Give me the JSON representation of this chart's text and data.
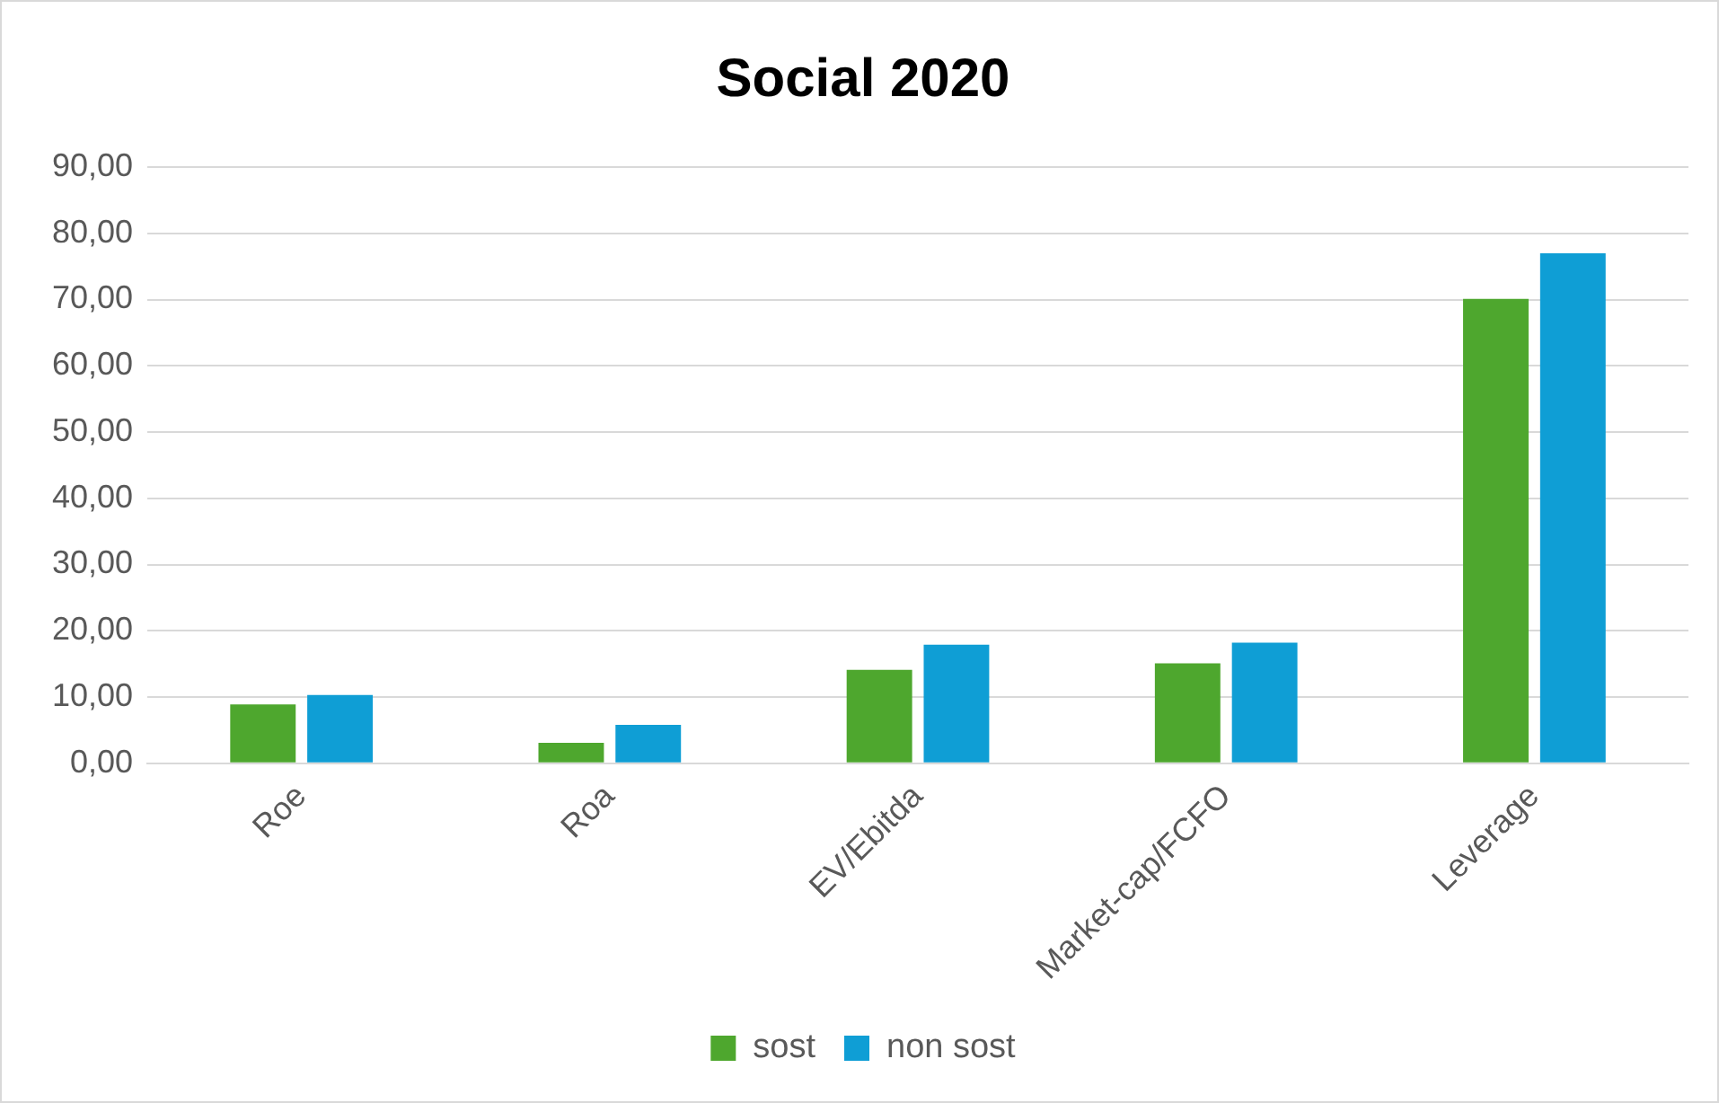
{
  "chart_data": {
    "type": "bar",
    "title": "Social 2020",
    "categories": [
      "Roe",
      "Roa",
      "EV/Ebitda",
      "Market-cap/FCFO",
      "Leverage"
    ],
    "series": [
      {
        "name": "sost",
        "color": "#4ea72e",
        "values": [
          8.9,
          3.1,
          14.1,
          15.1,
          70.1
        ]
      },
      {
        "name": "non sost",
        "color": "#0f9ed5",
        "values": [
          10.3,
          5.8,
          17.9,
          18.2,
          77.0
        ]
      }
    ],
    "ylim": [
      0,
      90
    ],
    "yticks": [
      {
        "value": 0,
        "label": "0,00"
      },
      {
        "value": 10,
        "label": "10,00"
      },
      {
        "value": 20,
        "label": "20,00"
      },
      {
        "value": 30,
        "label": "30,00"
      },
      {
        "value": 40,
        "label": "40,00"
      },
      {
        "value": 50,
        "label": "50,00"
      },
      {
        "value": 60,
        "label": "60,00"
      },
      {
        "value": 70,
        "label": "70,00"
      },
      {
        "value": 80,
        "label": "80,00"
      },
      {
        "value": 90,
        "label": "90,00"
      }
    ],
    "grid": "y",
    "legend": "bottom"
  }
}
